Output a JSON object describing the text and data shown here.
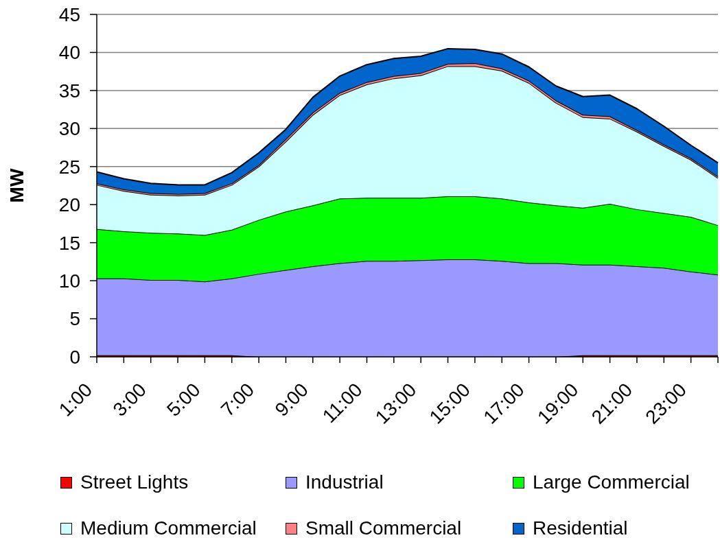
{
  "chart_data": {
    "type": "area",
    "stacked": true,
    "ylabel": "MW",
    "categories": [
      "1:00",
      null,
      "3:00",
      null,
      "5:00",
      null,
      "7:00",
      null,
      "9:00",
      null,
      "11:00",
      null,
      "13:00",
      null,
      "15:00",
      null,
      "17:00",
      null,
      "19:00",
      null,
      "21:00",
      null,
      "23:00",
      null
    ],
    "series": [
      {
        "name": "Street Lights",
        "color": "#ff0000",
        "values": [
          0.2,
          0.2,
          0.2,
          0.2,
          0.2,
          0.2,
          0,
          0,
          0,
          0,
          0,
          0,
          0,
          0,
          0,
          0,
          0,
          0,
          0.2,
          0.2,
          0.2,
          0.2,
          0.2,
          0.2
        ]
      },
      {
        "name": "Industrial",
        "color": "#9999ff",
        "values": [
          10.1,
          10.1,
          9.9,
          9.9,
          9.7,
          10.1,
          10.9,
          11.4,
          11.9,
          12.3,
          12.6,
          12.6,
          12.7,
          12.8,
          12.8,
          12.6,
          12.3,
          12.3,
          11.9,
          11.9,
          11.7,
          11.5,
          11.0,
          10.6
        ]
      },
      {
        "name": "Large Commercial",
        "color": "#00ff00",
        "values": [
          6.5,
          6.2,
          6.2,
          6.1,
          6.1,
          6.4,
          7.1,
          7.7,
          8.0,
          8.5,
          8.3,
          8.3,
          8.2,
          8.3,
          8.3,
          8.2,
          8.0,
          7.6,
          7.5,
          8.0,
          7.5,
          7.2,
          7.2,
          6.5
        ]
      },
      {
        "name": "Medium Commercial",
        "color": "#ccffff",
        "values": [
          5.8,
          5.3,
          5.0,
          5.0,
          5.3,
          5.9,
          7.0,
          9.2,
          11.9,
          13.6,
          14.9,
          15.7,
          16.1,
          17.1,
          17.1,
          16.8,
          15.7,
          13.5,
          11.9,
          11.2,
          10.2,
          8.8,
          7.5,
          6.2
        ]
      },
      {
        "name": "Small Commercial",
        "color": "#ff8080",
        "values": [
          0.2,
          0.2,
          0.2,
          0.2,
          0.2,
          0.2,
          0.2,
          0.3,
          0.3,
          0.3,
          0.3,
          0.3,
          0.3,
          0.3,
          0.4,
          0.3,
          0.3,
          0.3,
          0.3,
          0.3,
          0.2,
          0.2,
          0.2,
          0.2
        ]
      },
      {
        "name": "Residential",
        "color": "#0066cc",
        "values": [
          1.5,
          1.4,
          1.3,
          1.2,
          1.1,
          1.4,
          1.6,
          1.3,
          2.0,
          2.2,
          2.3,
          2.3,
          2.2,
          2.0,
          1.8,
          1.9,
          1.8,
          1.9,
          2.4,
          2.8,
          2.8,
          2.4,
          1.7,
          1.8
        ]
      }
    ],
    "ylim": [
      0,
      45
    ],
    "yticks": [
      0,
      5,
      10,
      15,
      20,
      25,
      30,
      35,
      40,
      45
    ],
    "grid": "y",
    "legend": "bottom"
  }
}
